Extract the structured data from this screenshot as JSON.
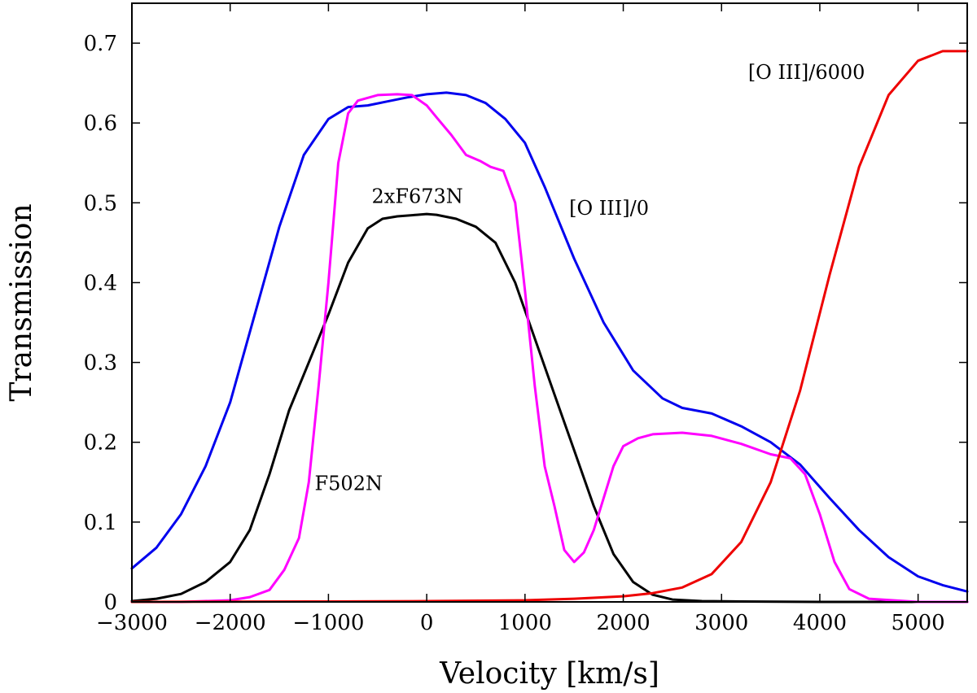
{
  "chart_data": {
    "type": "line",
    "title": "",
    "xlabel": "Velocity [km/s]",
    "ylabel": "Transmission",
    "xlim": [
      -3000,
      5500
    ],
    "ylim": [
      0,
      0.75
    ],
    "xticks": [
      -3000,
      -2000,
      -1000,
      0,
      1000,
      2000,
      3000,
      4000,
      5000
    ],
    "xtick_labels": [
      "−3000",
      "−2000",
      "−1000",
      "0",
      "1000",
      "2000",
      "3000",
      "4000",
      "5000"
    ],
    "yticks": [
      0,
      0.1,
      0.2,
      0.3,
      0.4,
      0.5,
      0.6,
      0.7
    ],
    "ytick_labels": [
      "0",
      "0.1",
      "0.2",
      "0.3",
      "0.4",
      "0.5",
      "0.6",
      "0.7"
    ],
    "grid": false,
    "series": [
      {
        "name": "[O III]/0",
        "color": "#0000ee",
        "x": [
          -3000,
          -2750,
          -2500,
          -2250,
          -2000,
          -1750,
          -1500,
          -1250,
          -1000,
          -800,
          -600,
          -400,
          -200,
          0,
          200,
          400,
          600,
          800,
          1000,
          1200,
          1500,
          1800,
          2100,
          2400,
          2600,
          2900,
          3200,
          3500,
          3800,
          4100,
          4400,
          4700,
          5000,
          5250,
          5500
        ],
        "y": [
          0.042,
          0.068,
          0.11,
          0.17,
          0.25,
          0.36,
          0.47,
          0.56,
          0.605,
          0.62,
          0.622,
          0.627,
          0.632,
          0.636,
          0.638,
          0.635,
          0.625,
          0.605,
          0.575,
          0.52,
          0.43,
          0.35,
          0.29,
          0.255,
          0.243,
          0.236,
          0.22,
          0.2,
          0.172,
          0.13,
          0.09,
          0.056,
          0.032,
          0.021,
          0.013
        ]
      },
      {
        "name": "2xF673N",
        "color": "#000000",
        "x": [
          -3000,
          -2750,
          -2500,
          -2250,
          -2000,
          -1800,
          -1600,
          -1400,
          -1200,
          -1000,
          -800,
          -600,
          -450,
          -300,
          -100,
          0,
          100,
          300,
          500,
          700,
          900,
          1100,
          1300,
          1500,
          1700,
          1900,
          2100,
          2300,
          2500,
          2800,
          3200,
          4000,
          5500
        ],
        "y": [
          0.001,
          0.004,
          0.01,
          0.025,
          0.05,
          0.09,
          0.16,
          0.24,
          0.3,
          0.36,
          0.425,
          0.468,
          0.48,
          0.483,
          0.485,
          0.486,
          0.485,
          0.48,
          0.47,
          0.45,
          0.4,
          0.33,
          0.26,
          0.19,
          0.12,
          0.06,
          0.025,
          0.009,
          0.003,
          0.001,
          0.0005,
          0.0,
          0.0
        ]
      },
      {
        "name": "F502N",
        "color": "#ff00ff",
        "x": [
          -3000,
          -2500,
          -2000,
          -1800,
          -1600,
          -1450,
          -1300,
          -1200,
          -1100,
          -1000,
          -900,
          -800,
          -700,
          -500,
          -300,
          -150,
          0,
          100,
          250,
          400,
          550,
          650,
          780,
          900,
          1000,
          1100,
          1200,
          1300,
          1400,
          1500,
          1600,
          1700,
          1800,
          1900,
          2000,
          2150,
          2300,
          2600,
          2900,
          3200,
          3500,
          3700,
          3850,
          4000,
          4150,
          4300,
          4500,
          5000,
          5500
        ],
        "y": [
          0.0,
          0.0,
          0.002,
          0.006,
          0.015,
          0.04,
          0.08,
          0.15,
          0.27,
          0.4,
          0.55,
          0.612,
          0.628,
          0.635,
          0.636,
          0.635,
          0.622,
          0.607,
          0.585,
          0.56,
          0.552,
          0.545,
          0.54,
          0.5,
          0.39,
          0.27,
          0.17,
          0.12,
          0.065,
          0.05,
          0.062,
          0.09,
          0.13,
          0.17,
          0.195,
          0.205,
          0.21,
          0.212,
          0.208,
          0.198,
          0.185,
          0.18,
          0.16,
          0.11,
          0.05,
          0.016,
          0.004,
          0.0,
          0.0
        ]
      },
      {
        "name": "[O III]/6000",
        "color": "#ee0000",
        "x": [
          -3000,
          -1000,
          0,
          1000,
          1500,
          2000,
          2300,
          2600,
          2900,
          3200,
          3500,
          3800,
          4100,
          4400,
          4700,
          5000,
          5250,
          5500
        ],
        "y": [
          0.0,
          0.0005,
          0.001,
          0.002,
          0.004,
          0.007,
          0.011,
          0.018,
          0.035,
          0.075,
          0.15,
          0.265,
          0.41,
          0.545,
          0.635,
          0.678,
          0.69,
          0.69
        ]
      }
    ],
    "annotations": [
      {
        "text": "[O III]/6000",
        "x": 3270,
        "y": 0.655
      },
      {
        "text": "[O III]/0",
        "x": 1450,
        "y": 0.485
      },
      {
        "text": "2xF673N",
        "x": -560,
        "y": 0.5
      },
      {
        "text": "F502N",
        "x": -1140,
        "y": 0.14
      }
    ]
  }
}
